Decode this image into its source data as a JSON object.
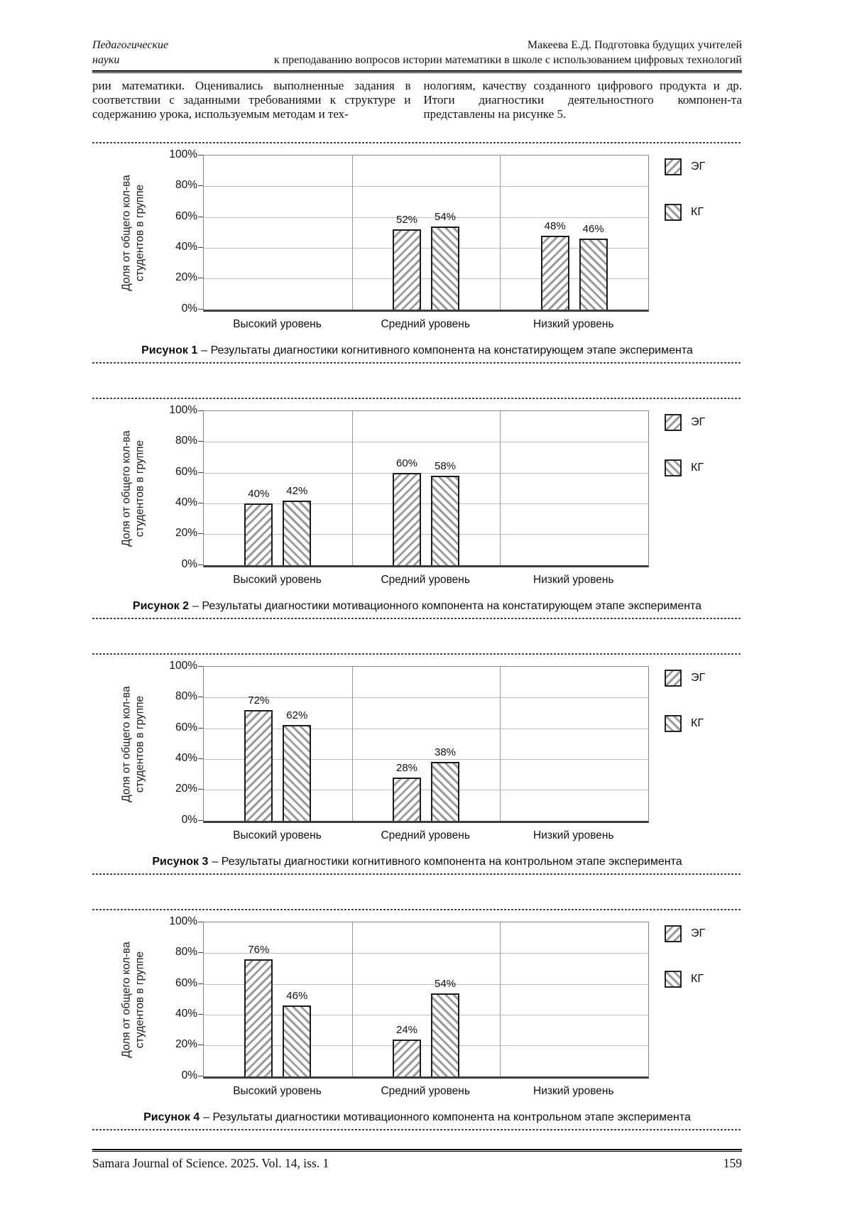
{
  "page": {
    "header": {
      "left_line1": "Педагогические",
      "left_line2": "науки",
      "right_line1": "Макеева Е.Д. Подготовка будущих учителей",
      "right_line2": "к преподаванию вопросов истории математики в школе с использованием цифровых технологий"
    },
    "body_text": {
      "left_column": "рии математики. Оценивались выполненные задания в соответствии с заданными требованиями к структуре и содержанию урока, используемым методам и тех-",
      "right_column": "нологиям, качеству созданного цифрового продукта и др. Итоги диагностики деятельностного компонен-та представлены на рисунке 5."
    },
    "footer": {
      "journal": "Samara Journal of Science. 2025. Vol. 14, iss. 1",
      "page_number": "159"
    }
  },
  "colors": {
    "text": "#111111",
    "grid": "#bdbdbd",
    "axis": "#3c3c3c",
    "bar_border": "#1c1c1c",
    "hatch_gray": "#9b9b9b"
  },
  "chart_data": [
    {
      "type": "bar",
      "figure_label": "Рисунок 1",
      "caption": "– Результаты диагностики когнитивного компонента на констатирующем этапе эксперимента",
      "categories": [
        "Высокий уровень",
        "Средний уровень",
        "Низкий уровень"
      ],
      "series": [
        {
          "name": "ЭГ",
          "hatch": "forward-diagonal",
          "values": [
            0,
            52,
            48
          ]
        },
        {
          "name": "КГ",
          "hatch": "backward-diagonal",
          "values": [
            0,
            54,
            46
          ]
        }
      ],
      "ylabel_lines": [
        "Доля от общего кол-ва",
        "студентов в группе"
      ],
      "yticks": [
        "0%",
        "20%",
        "40%",
        "60%",
        "80%",
        "100%"
      ],
      "ylim": [
        0,
        100
      ],
      "value_label_suffix": "%",
      "legend_position": "right",
      "grid": true
    },
    {
      "type": "bar",
      "figure_label": "Рисунок 2",
      "caption": "– Результаты диагностики мотивационного компонента на констатирующем этапе эксперимента",
      "categories": [
        "Высокий уровень",
        "Средний уровень",
        "Низкий уровень"
      ],
      "series": [
        {
          "name": "ЭГ",
          "hatch": "forward-diagonal",
          "values": [
            40,
            60,
            0
          ]
        },
        {
          "name": "КГ",
          "hatch": "backward-diagonal",
          "values": [
            42,
            58,
            0
          ]
        }
      ],
      "ylabel_lines": [
        "Доля от общего кол-ва",
        "студентов в группе"
      ],
      "yticks": [
        "0%",
        "20%",
        "40%",
        "60%",
        "80%",
        "100%"
      ],
      "ylim": [
        0,
        100
      ],
      "value_label_suffix": "%",
      "legend_position": "right",
      "grid": true
    },
    {
      "type": "bar",
      "figure_label": "Рисунок 3",
      "caption": "– Результаты диагностики когнитивного компонента на контрольном этапе эксперимента",
      "categories": [
        "Высокий уровень",
        "Средний уровень",
        "Низкий уровень"
      ],
      "series": [
        {
          "name": "ЭГ",
          "hatch": "forward-diagonal",
          "values": [
            72,
            28,
            0
          ]
        },
        {
          "name": "КГ",
          "hatch": "backward-diagonal",
          "values": [
            62,
            38,
            0
          ]
        }
      ],
      "ylabel_lines": [
        "Доля от общего кол-ва",
        "студентов в группе"
      ],
      "yticks": [
        "0%",
        "20%",
        "40%",
        "60%",
        "80%",
        "100%"
      ],
      "ylim": [
        0,
        100
      ],
      "value_label_suffix": "%",
      "legend_position": "right",
      "grid": true
    },
    {
      "type": "bar",
      "figure_label": "Рисунок 4",
      "caption": "– Результаты диагностики мотивационного компонента на контрольном этапе эксперимента",
      "categories": [
        "Высокий уровень",
        "Средний уровень",
        "Низкий уровень"
      ],
      "series": [
        {
          "name": "ЭГ",
          "hatch": "forward-diagonal",
          "values": [
            76,
            24,
            0
          ]
        },
        {
          "name": "КГ",
          "hatch": "backward-diagonal",
          "values": [
            46,
            54,
            0
          ]
        }
      ],
      "ylabel_lines": [
        "Доля от общего кол-ва",
        "студентов в группе"
      ],
      "yticks": [
        "0%",
        "20%",
        "40%",
        "60%",
        "80%",
        "100%"
      ],
      "ylim": [
        0,
        100
      ],
      "value_label_suffix": "%",
      "legend_position": "right",
      "grid": true
    }
  ]
}
